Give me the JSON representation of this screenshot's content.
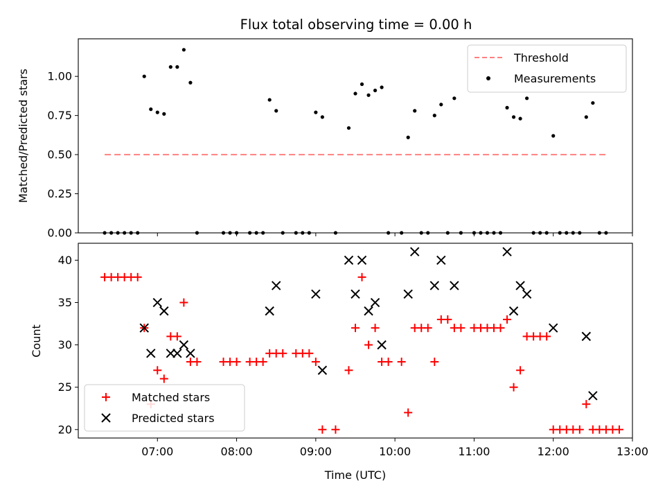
{
  "chart_data": [
    {
      "type": "scatter",
      "title": "Flux total observing time = 0.00 h",
      "xlabel": "",
      "ylabel": "Matched/Predicted stars",
      "ylim": [
        0,
        1.24
      ],
      "yticks": [
        "0.00",
        "0.25",
        "0.50",
        "0.75",
        "1.00"
      ],
      "ytick_values": [
        0,
        0.25,
        0.5,
        0.75,
        1.0
      ],
      "legend_position": "upper-right",
      "threshold": {
        "name": "Threshold",
        "value": 0.5,
        "x": [
          "06:20",
          "12:40"
        ],
        "color": "#ff8080",
        "style": "dashed"
      },
      "series": [
        {
          "name": "Measurements",
          "color": "#000000",
          "points": [
            [
              "06:20",
              0
            ],
            [
              "06:25",
              0
            ],
            [
              "06:30",
              0
            ],
            [
              "06:35",
              0
            ],
            [
              "06:40",
              0
            ],
            [
              "06:45",
              0
            ],
            [
              "06:50",
              1.0
            ],
            [
              "06:55",
              0.79
            ],
            [
              "07:00",
              0.77
            ],
            [
              "07:05",
              0.76
            ],
            [
              "07:10",
              1.06
            ],
            [
              "07:15",
              1.06
            ],
            [
              "07:20",
              1.17
            ],
            [
              "07:25",
              0.96
            ],
            [
              "07:30",
              0
            ],
            [
              "07:50",
              0
            ],
            [
              "07:55",
              0
            ],
            [
              "08:00",
              0
            ],
            [
              "08:10",
              0
            ],
            [
              "08:15",
              0
            ],
            [
              "08:20",
              0
            ],
            [
              "08:25",
              0.85
            ],
            [
              "08:30",
              0.78
            ],
            [
              "08:35",
              0
            ],
            [
              "08:45",
              0
            ],
            [
              "08:50",
              0
            ],
            [
              "08:55",
              0
            ],
            [
              "09:00",
              0.77
            ],
            [
              "09:05",
              0.74
            ],
            [
              "09:15",
              0
            ],
            [
              "09:25",
              0.67
            ],
            [
              "09:30",
              0.89
            ],
            [
              "09:35",
              0.95
            ],
            [
              "09:40",
              0.88
            ],
            [
              "09:45",
              0.91
            ],
            [
              "09:50",
              0.93
            ],
            [
              "09:55",
              0
            ],
            [
              "10:05",
              0
            ],
            [
              "10:10",
              0.61
            ],
            [
              "10:15",
              0.78
            ],
            [
              "10:20",
              0
            ],
            [
              "10:25",
              0
            ],
            [
              "10:30",
              0.75
            ],
            [
              "10:35",
              0.82
            ],
            [
              "10:40",
              0
            ],
            [
              "10:45",
              0.86
            ],
            [
              "10:50",
              0
            ],
            [
              "11:00",
              0
            ],
            [
              "11:05",
              0
            ],
            [
              "11:10",
              0
            ],
            [
              "11:15",
              0
            ],
            [
              "11:20",
              0
            ],
            [
              "11:25",
              0.8
            ],
            [
              "11:30",
              0.74
            ],
            [
              "11:35",
              0.73
            ],
            [
              "11:40",
              0.86
            ],
            [
              "11:45",
              0
            ],
            [
              "11:50",
              0
            ],
            [
              "11:55",
              0
            ],
            [
              "12:00",
              0.62
            ],
            [
              "12:05",
              0
            ],
            [
              "12:10",
              0
            ],
            [
              "12:15",
              0
            ],
            [
              "12:20",
              0
            ],
            [
              "12:25",
              0.74
            ],
            [
              "12:30",
              0.83
            ],
            [
              "12:35",
              0
            ],
            [
              "12:40",
              0
            ]
          ]
        }
      ]
    },
    {
      "type": "scatter",
      "xlabel": "Time (UTC)",
      "ylabel": "Count",
      "ylim": [
        19,
        42
      ],
      "yticks": [
        "20",
        "25",
        "30",
        "35",
        "40"
      ],
      "ytick_values": [
        20,
        25,
        30,
        35,
        40
      ],
      "xlim": [
        "06:00",
        "13:00"
      ],
      "xticks": [
        "07:00",
        "08:00",
        "09:00",
        "10:00",
        "11:00",
        "12:00",
        "13:00"
      ],
      "legend_position": "lower-left",
      "series": [
        {
          "name": "Matched stars",
          "color": "#ff0000",
          "marker": "plus",
          "points": [
            [
              "06:20",
              38
            ],
            [
              "06:25",
              38
            ],
            [
              "06:30",
              38
            ],
            [
              "06:35",
              38
            ],
            [
              "06:40",
              38
            ],
            [
              "06:45",
              38
            ],
            [
              "06:50",
              32
            ],
            [
              "06:55",
              23
            ],
            [
              "07:00",
              27
            ],
            [
              "07:05",
              26
            ],
            [
              "07:10",
              31
            ],
            [
              "07:15",
              31
            ],
            [
              "07:20",
              35
            ],
            [
              "07:25",
              28
            ],
            [
              "07:30",
              28
            ],
            [
              "07:50",
              28
            ],
            [
              "07:55",
              28
            ],
            [
              "08:00",
              28
            ],
            [
              "08:10",
              28
            ],
            [
              "08:15",
              28
            ],
            [
              "08:20",
              28
            ],
            [
              "08:25",
              29
            ],
            [
              "08:30",
              29
            ],
            [
              "08:35",
              29
            ],
            [
              "08:45",
              29
            ],
            [
              "08:50",
              29
            ],
            [
              "08:55",
              29
            ],
            [
              "09:00",
              28
            ],
            [
              "09:05",
              20
            ],
            [
              "09:15",
              20
            ],
            [
              "09:25",
              27
            ],
            [
              "09:30",
              32
            ],
            [
              "09:35",
              38
            ],
            [
              "09:40",
              30
            ],
            [
              "09:45",
              32
            ],
            [
              "09:50",
              28
            ],
            [
              "09:55",
              28
            ],
            [
              "10:05",
              28
            ],
            [
              "10:10",
              22
            ],
            [
              "10:15",
              32
            ],
            [
              "10:20",
              32
            ],
            [
              "10:25",
              32
            ],
            [
              "10:30",
              28
            ],
            [
              "10:35",
              33
            ],
            [
              "10:40",
              33
            ],
            [
              "10:45",
              32
            ],
            [
              "10:50",
              32
            ],
            [
              "11:00",
              32
            ],
            [
              "11:05",
              32
            ],
            [
              "11:10",
              32
            ],
            [
              "11:15",
              32
            ],
            [
              "11:20",
              32
            ],
            [
              "11:25",
              33
            ],
            [
              "11:30",
              25
            ],
            [
              "11:35",
              27
            ],
            [
              "11:40",
              31
            ],
            [
              "11:45",
              31
            ],
            [
              "11:50",
              31
            ],
            [
              "11:55",
              31
            ],
            [
              "12:00",
              20
            ],
            [
              "12:05",
              20
            ],
            [
              "12:10",
              20
            ],
            [
              "12:15",
              20
            ],
            [
              "12:20",
              20
            ],
            [
              "12:25",
              23
            ],
            [
              "12:30",
              20
            ],
            [
              "12:35",
              20
            ],
            [
              "12:40",
              20
            ],
            [
              "12:45",
              20
            ],
            [
              "12:50",
              20
            ]
          ]
        },
        {
          "name": "Predicted stars",
          "color": "#000000",
          "marker": "x",
          "points": [
            [
              "06:50",
              32
            ],
            [
              "06:55",
              29
            ],
            [
              "07:00",
              35
            ],
            [
              "07:05",
              34
            ],
            [
              "07:10",
              29
            ],
            [
              "07:15",
              29
            ],
            [
              "07:20",
              30
            ],
            [
              "07:25",
              29
            ],
            [
              "08:25",
              34
            ],
            [
              "08:30",
              37
            ],
            [
              "09:00",
              36
            ],
            [
              "09:05",
              27
            ],
            [
              "09:25",
              40
            ],
            [
              "09:30",
              36
            ],
            [
              "09:35",
              40
            ],
            [
              "09:40",
              34
            ],
            [
              "09:45",
              35
            ],
            [
              "09:50",
              30
            ],
            [
              "10:10",
              36
            ],
            [
              "10:15",
              41
            ],
            [
              "10:30",
              37
            ],
            [
              "10:35",
              40
            ],
            [
              "10:45",
              37
            ],
            [
              "11:25",
              41
            ],
            [
              "11:30",
              34
            ],
            [
              "11:35",
              37
            ],
            [
              "11:40",
              36
            ],
            [
              "12:00",
              32
            ],
            [
              "12:25",
              31
            ],
            [
              "12:30",
              24
            ]
          ]
        }
      ]
    }
  ]
}
